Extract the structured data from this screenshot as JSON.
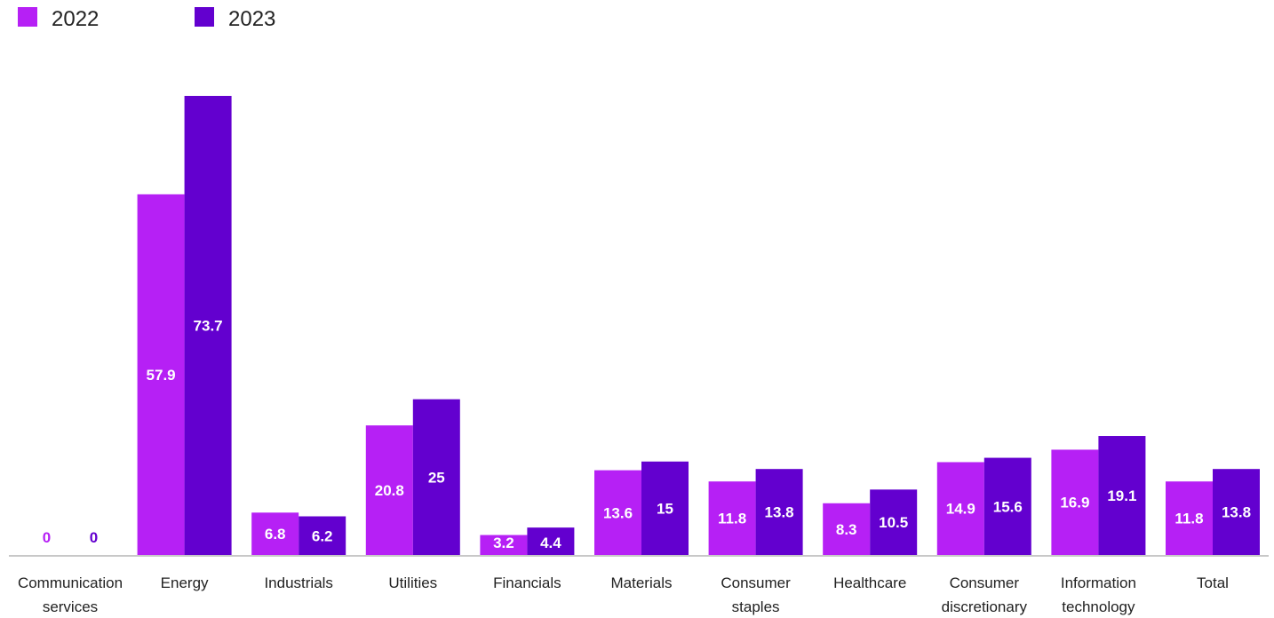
{
  "chart_data": {
    "type": "bar",
    "categories": [
      [
        "Communication",
        "services"
      ],
      [
        "Energy"
      ],
      [
        "Industrials"
      ],
      [
        "Utilities"
      ],
      [
        "Financials"
      ],
      [
        "Materials"
      ],
      [
        "Consumer",
        "staples"
      ],
      [
        "Healthcare"
      ],
      [
        "Consumer",
        "discretionary"
      ],
      [
        "Information",
        "technology"
      ],
      [
        "Total"
      ]
    ],
    "series": [
      {
        "name": "2022",
        "color": "#b620f5",
        "values": [
          0,
          57.9,
          6.8,
          20.8,
          3.2,
          13.6,
          11.8,
          8.3,
          14.9,
          16.9,
          11.8
        ]
      },
      {
        "name": "2023",
        "color": "#6300cf",
        "values": [
          0,
          73.7,
          6.2,
          25,
          4.4,
          15,
          13.8,
          10.5,
          15.6,
          19.1,
          13.8
        ]
      }
    ],
    "value_labels": {
      "2022": [
        "0",
        "57.9",
        "6.8",
        "20.8",
        "3.2",
        "13.6",
        "11.8",
        "8.3",
        "14.9",
        "16.9",
        "11.8"
      ],
      "2023": [
        "0",
        "73.7",
        "6.2",
        "25",
        "4.4",
        "15",
        "13.8",
        "10.5",
        "15.6",
        "19.1",
        "13.8"
      ]
    },
    "ylim": [
      0,
      73.7
    ],
    "grid": false,
    "y_axis_shown": false,
    "legend_position": "top-left",
    "title": "",
    "xlabel": "",
    "ylabel": ""
  }
}
